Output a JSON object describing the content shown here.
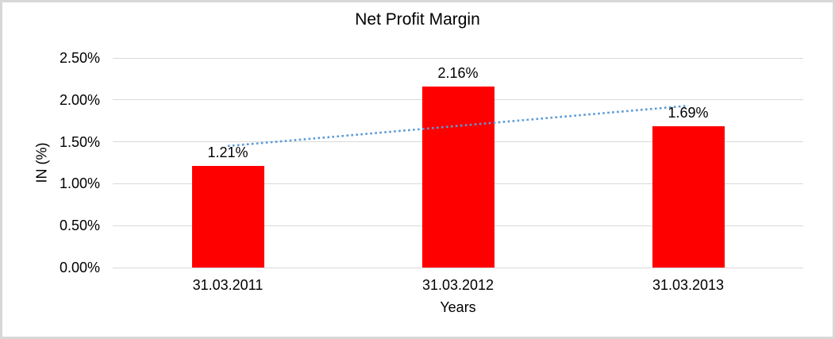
{
  "chart_data": {
    "type": "bar",
    "title": "Net Profit Margin",
    "xlabel": "Years",
    "ylabel": "IN (%)",
    "categories": [
      "31.03.2011",
      "31.03.2012",
      "31.03.2013"
    ],
    "values": [
      1.21,
      2.16,
      1.69
    ],
    "data_labels": [
      "1.21%",
      "2.16%",
      "1.69%"
    ],
    "ylim": [
      0,
      2.5
    ],
    "ytick_step": 0.5,
    "ytick_labels": [
      "0.00%",
      "0.50%",
      "1.00%",
      "1.50%",
      "2.00%",
      "2.50%"
    ],
    "grid": true,
    "legend": "none",
    "trendline": {
      "type": "linear",
      "style": "dotted",
      "endpoint_values": [
        1.45,
        1.93
      ]
    },
    "colors": {
      "bar": "#FF0000",
      "trendline": "#5B9BD5",
      "gridline": "#D9D9D9",
      "text": "#000000",
      "background": "#FFFFFF",
      "frame_border": "#D7D7D7"
    }
  }
}
